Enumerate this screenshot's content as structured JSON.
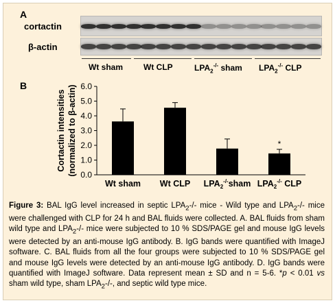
{
  "panel_a_label": "A",
  "panel_b_label": "B",
  "blot": {
    "row1_label": "cortactin",
    "row2_label": "β-actin",
    "groups": [
      {
        "name": "Wt sham"
      },
      {
        "name": "Wt  CLP"
      },
      {
        "name": "LPA",
        "sup": "-/-",
        "sub": "2",
        "suffix": " sham"
      },
      {
        "name": "LPA",
        "sup": "-/-",
        "sub": "2",
        "suffix": " CLP"
      }
    ]
  },
  "chart_data": {
    "type": "bar",
    "ylabel_line1": "Cortactin intensities",
    "ylabel_line2": "(normalized to β-actin)",
    "ylim": [
      0,
      6
    ],
    "yticks": [
      "0.0",
      "1.0",
      "2.0",
      "3.0",
      "4.0",
      "5.0",
      "6.0"
    ],
    "categories": [
      "Wt sham",
      "Wt  CLP",
      "LPA2-/- sham",
      "LPA2-/- CLP"
    ],
    "category_labels": [
      {
        "main": "Wt sham"
      },
      {
        "main": "Wt  CLP"
      },
      {
        "main": "LPA",
        "sub": "2",
        "sup": "-/-",
        "suffix": "sham"
      },
      {
        "main": "LPA",
        "sub": "2",
        "sup": "-/-",
        "suffix": " CLP"
      }
    ],
    "values": [
      3.62,
      4.55,
      1.78,
      1.45
    ],
    "errors": [
      0.85,
      0.35,
      0.65,
      0.28
    ],
    "annotations": [
      "",
      "",
      "",
      "*"
    ],
    "bar_color": "#000000"
  },
  "caption": {
    "label": "Figure 3:",
    "text_parts": [
      " BAL IgG level increased in septic LPA",
      "2",
      "-/- mice - Wild type and LPA",
      "2",
      "-/- mice were challenged with CLP for 24 h and BAL fluids were collected. A. BAL fluids from sham wild type and LPA",
      "2",
      "-/- mice were subjected to 10 % SDS/PAGE gel and mouse IgG levels were detected by an anti-mouse IgG antibody. B. IgG bands were quantified with ImageJ software. C. BAL fluids from all the four groups were subjected to 10 % SDS/PAGE gel and mouse IgG levels were detected by an anti-mouse IgG antibody. D. IgG bands were quantified with ImageJ software. Data represent mean ± SD and n = 5-6. *",
      "p",
      " < 0.01 ",
      "vs",
      " sham wild type, sham LPA",
      "2",
      "-/-, and septic wild type mice."
    ]
  }
}
